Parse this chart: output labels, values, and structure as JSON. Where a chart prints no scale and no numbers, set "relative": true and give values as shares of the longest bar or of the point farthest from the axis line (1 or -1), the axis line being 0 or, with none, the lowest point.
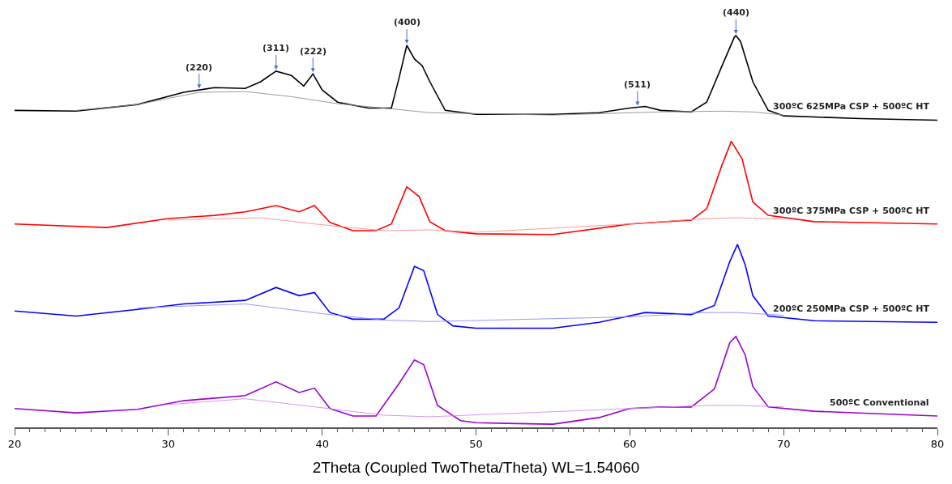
{
  "chart_data": {
    "type": "line",
    "relative": true,
    "xlabel": "2Theta (Coupled TwoTheta/Theta) WL=1.54060",
    "xlim": [
      20,
      80
    ],
    "xticks": [
      20,
      30,
      40,
      50,
      60,
      70,
      80
    ],
    "legend": false,
    "marker": "none",
    "line_style": "solid",
    "series": [
      {
        "name": "300ºC 625MPa CSP + 500ºC HT",
        "color": "#000000",
        "x": [
          20,
          24,
          28,
          31,
          33,
          35,
          36,
          37,
          38,
          38.8,
          39.4,
          40,
          41,
          43,
          44.5,
          45,
          45.5,
          46,
          46.5,
          47,
          48,
          50,
          55,
          58,
          60,
          61,
          62,
          64,
          65,
          66,
          66.8,
          66.9,
          67.2,
          68,
          69,
          70,
          75,
          80
        ],
        "values": [
          0.809,
          0.807,
          0.824,
          0.855,
          0.867,
          0.865,
          0.882,
          0.909,
          0.898,
          0.871,
          0.902,
          0.861,
          0.83,
          0.815,
          0.815,
          0.892,
          0.975,
          0.94,
          0.923,
          0.882,
          0.809,
          0.799,
          0.799,
          0.803,
          0.815,
          0.819,
          0.809,
          0.805,
          0.83,
          0.923,
          0.996,
          1.0,
          0.985,
          0.882,
          0.809,
          0.795,
          0.788,
          0.784
        ]
      },
      {
        "color": "#909090",
        "x": [
          24,
          28,
          32,
          35,
          38,
          41,
          45,
          47,
          55,
          62,
          66,
          68,
          70
        ],
        "values": [
          0.809,
          0.824,
          0.855,
          0.857,
          0.844,
          0.826,
          0.811,
          0.803,
          0.797,
          0.805,
          0.807,
          0.805,
          0.797
        ]
      },
      {
        "name": "300ºC 375MPa CSP + 500ºC HT",
        "color": "#ff0000",
        "x": [
          20,
          26,
          30,
          33,
          35,
          37,
          38.5,
          39.5,
          40.5,
          42,
          43.5,
          44.5,
          45.5,
          46.3,
          47,
          48,
          50,
          55,
          60,
          64,
          65,
          66,
          66.6,
          67.3,
          68,
          69,
          72,
          80
        ],
        "values": [
          0.519,
          0.51,
          0.533,
          0.541,
          0.55,
          0.566,
          0.55,
          0.566,
          0.523,
          0.502,
          0.502,
          0.519,
          0.614,
          0.589,
          0.525,
          0.502,
          0.494,
          0.492,
          0.519,
          0.529,
          0.558,
          0.67,
          0.73,
          0.685,
          0.575,
          0.541,
          0.525,
          0.519
        ]
      },
      {
        "color": "#ff9090",
        "x": [
          30,
          36,
          40,
          44,
          47,
          50,
          60,
          65,
          67,
          70
        ],
        "values": [
          0.529,
          0.535,
          0.517,
          0.502,
          0.504,
          0.498,
          0.519,
          0.533,
          0.535,
          0.531
        ]
      },
      {
        "name": "200ºC 250MPa CSP + 500ºC HT",
        "color": "#0000ff",
        "x": [
          20,
          24,
          28,
          31,
          35,
          37,
          38.5,
          39.5,
          40.5,
          42,
          44,
          45,
          46,
          46.6,
          47.5,
          48.5,
          50,
          55,
          58,
          61,
          64,
          65.5,
          66.5,
          67,
          67.5,
          68,
          69,
          72,
          80
        ],
        "values": [
          0.297,
          0.284,
          0.301,
          0.315,
          0.324,
          0.357,
          0.336,
          0.344,
          0.293,
          0.276,
          0.276,
          0.305,
          0.411,
          0.4,
          0.288,
          0.259,
          0.253,
          0.253,
          0.268,
          0.293,
          0.288,
          0.311,
          0.423,
          0.467,
          0.415,
          0.336,
          0.284,
          0.272,
          0.268
        ]
      },
      {
        "color": "#8c8cff",
        "x": [
          28,
          35,
          40,
          44,
          47,
          60,
          65,
          67,
          70
        ],
        "values": [
          0.305,
          0.315,
          0.29,
          0.274,
          0.27,
          0.282,
          0.293,
          0.293,
          0.286
        ]
      },
      {
        "name": "500ºC Conventional",
        "color": "#9900cc",
        "x": [
          20,
          24,
          28,
          31,
          35,
          37,
          38.5,
          39.5,
          40.5,
          42,
          43.5,
          45,
          46,
          46.6,
          47.5,
          49,
          50,
          52,
          55,
          58,
          60,
          62,
          64,
          65.5,
          66.5,
          66.9,
          67.5,
          68,
          69,
          72,
          80
        ],
        "values": [
          0.048,
          0.037,
          0.046,
          0.068,
          0.081,
          0.116,
          0.089,
          0.1,
          0.048,
          0.029,
          0.029,
          0.112,
          0.172,
          0.16,
          0.056,
          0.017,
          0.012,
          0.01,
          0.008,
          0.025,
          0.048,
          0.052,
          0.052,
          0.098,
          0.216,
          0.232,
          0.185,
          0.104,
          0.052,
          0.041,
          0.029
        ]
      },
      {
        "color": "#d08cf0",
        "x": [
          30,
          35,
          40,
          44,
          47,
          60,
          65,
          67,
          70
        ],
        "values": [
          0.058,
          0.073,
          0.05,
          0.031,
          0.027,
          0.048,
          0.056,
          0.056,
          0.052
        ]
      }
    ],
    "annotations": [
      {
        "text": "(220)",
        "x": 32,
        "y": 0.861
      },
      {
        "text": "(311)",
        "x": 37,
        "y": 0.909
      },
      {
        "text": "(222)",
        "x": 39.4,
        "y": 0.902
      },
      {
        "text": "(400)",
        "x": 45.5,
        "y": 0.975
      },
      {
        "text": "(511)",
        "x": 60.5,
        "y": 0.817
      },
      {
        "text": "(440)",
        "x": 66.9,
        "y": 1.0
      }
    ]
  }
}
